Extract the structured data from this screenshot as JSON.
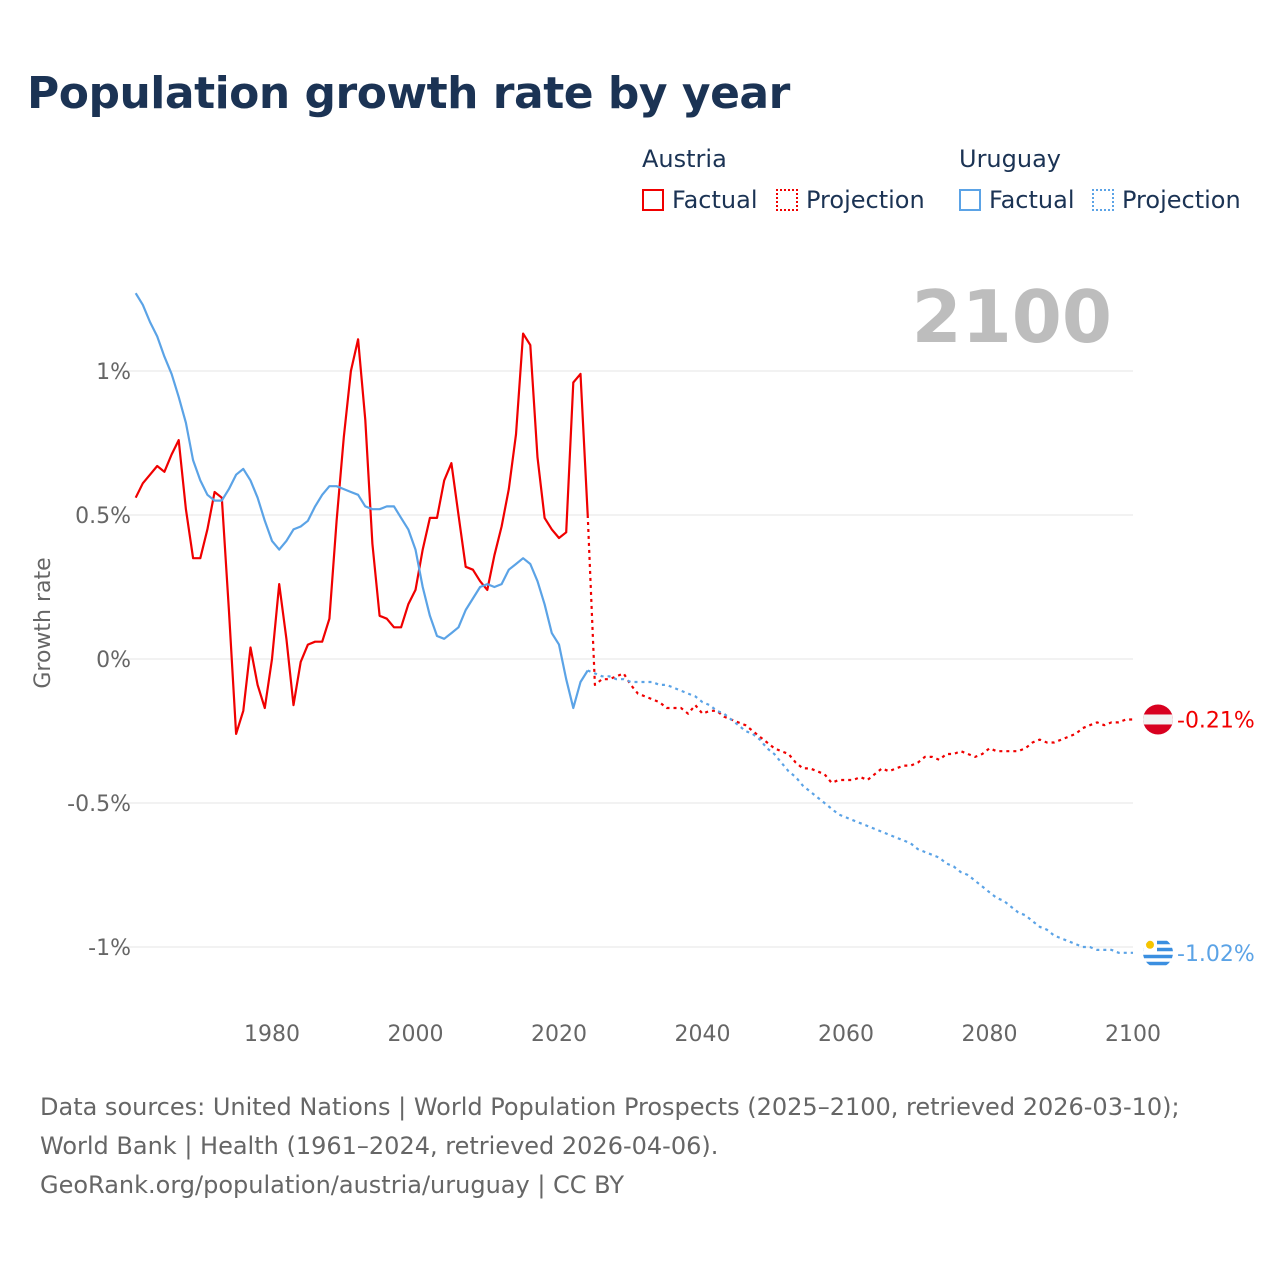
{
  "title": "Population growth rate by year",
  "legend": {
    "groups": [
      {
        "name": "Austria",
        "factual": "Factual",
        "projection": "Projection",
        "color": "#f00000"
      },
      {
        "name": "Uruguay",
        "factual": "Factual",
        "projection": "Projection",
        "color": "#5ba3e6"
      }
    ]
  },
  "year_label": "2100",
  "footer": {
    "sources": "Data sources: United Nations | World Population Prospects (2025–2100, retrieved 2026-03-10); World Bank | Health (1961–2024, retrieved 2026-04-06).",
    "credit": "GeoRank.org/population/austria/uruguay | CC BY"
  },
  "chart_data": {
    "type": "line",
    "title": "Population growth rate by year",
    "ylabel": "Growth rate",
    "xlabel": "",
    "xlim": [
      1961,
      2100
    ],
    "ylim": [
      -1.1,
      1.3
    ],
    "x_ticks": [
      1980,
      2000,
      2020,
      2040,
      2060,
      2080,
      2100
    ],
    "x_tick_labels": [
      "1980",
      "2000",
      "2020",
      "2040",
      "2060",
      "2080",
      "2100"
    ],
    "y_ticks": [
      1,
      0.5,
      0,
      -0.5,
      -1
    ],
    "y_tick_labels": [
      "1%",
      "0.5%",
      "0%",
      "-0.5%",
      "-1%"
    ],
    "grid": true,
    "legend_placement": "top-right",
    "series": [
      {
        "name": "Austria Factual",
        "color": "#f00000",
        "dash": false,
        "start": 1961,
        "values": [
          0.56,
          0.61,
          0.64,
          0.67,
          0.65,
          0.71,
          0.76,
          0.52,
          0.35,
          0.35,
          0.45,
          0.58,
          0.56,
          0.17,
          -0.26,
          -0.18,
          0.04,
          -0.09,
          -0.17,
          0.0,
          0.26,
          0.07,
          -0.16,
          -0.01,
          0.05,
          0.06,
          0.06,
          0.14,
          0.48,
          0.77,
          1.0,
          1.11,
          0.83,
          0.4,
          0.15,
          0.14,
          0.11,
          0.11,
          0.19,
          0.24,
          0.38,
          0.49,
          0.49,
          0.62,
          0.68,
          0.5,
          0.32,
          0.31,
          0.27,
          0.24,
          0.36,
          0.46,
          0.59,
          0.78,
          1.13,
          1.09,
          0.7,
          0.49,
          0.45,
          0.42,
          0.44,
          0.96,
          0.99,
          0.5
        ]
      },
      {
        "name": "Austria Projection",
        "color": "#f00000",
        "dash": true,
        "start": 2024,
        "values": [
          0.5,
          -0.09,
          -0.07,
          -0.07,
          -0.06,
          -0.05,
          -0.09,
          -0.12,
          -0.13,
          -0.14,
          -0.15,
          -0.17,
          -0.17,
          -0.17,
          -0.19,
          -0.16,
          -0.19,
          -0.18,
          -0.18,
          -0.2,
          -0.21,
          -0.22,
          -0.23,
          -0.25,
          -0.27,
          -0.29,
          -0.31,
          -0.32,
          -0.33,
          -0.36,
          -0.38,
          -0.38,
          -0.39,
          -0.4,
          -0.43,
          -0.42,
          -0.42,
          -0.42,
          -0.41,
          -0.42,
          -0.4,
          -0.38,
          -0.39,
          -0.38,
          -0.37,
          -0.37,
          -0.36,
          -0.34,
          -0.34,
          -0.35,
          -0.33,
          -0.33,
          -0.32,
          -0.33,
          -0.34,
          -0.33,
          -0.31,
          -0.32,
          -0.32,
          -0.32,
          -0.32,
          -0.31,
          -0.29,
          -0.28,
          -0.29,
          -0.29,
          -0.28,
          -0.27,
          -0.26,
          -0.24,
          -0.23,
          -0.22,
          -0.23,
          -0.22,
          -0.22,
          -0.21,
          -0.21
        ]
      },
      {
        "name": "Uruguay Factual",
        "color": "#5ba3e6",
        "dash": false,
        "start": 1961,
        "values": [
          1.27,
          1.23,
          1.17,
          1.12,
          1.05,
          0.99,
          0.91,
          0.82,
          0.69,
          0.62,
          0.57,
          0.55,
          0.55,
          0.59,
          0.64,
          0.66,
          0.62,
          0.56,
          0.48,
          0.41,
          0.38,
          0.41,
          0.45,
          0.46,
          0.48,
          0.53,
          0.57,
          0.6,
          0.6,
          0.59,
          0.58,
          0.57,
          0.53,
          0.52,
          0.52,
          0.53,
          0.53,
          0.49,
          0.45,
          0.38,
          0.25,
          0.15,
          0.08,
          0.07,
          0.09,
          0.11,
          0.17,
          0.21,
          0.25,
          0.26,
          0.25,
          0.26,
          0.31,
          0.33,
          0.35,
          0.33,
          0.27,
          0.19,
          0.09,
          0.05,
          -0.07,
          -0.17,
          -0.08,
          -0.04
        ]
      },
      {
        "name": "Uruguay Projection",
        "color": "#5ba3e6",
        "dash": true,
        "start": 2024,
        "values": [
          -0.04,
          -0.05,
          -0.06,
          -0.06,
          -0.07,
          -0.07,
          -0.08,
          -0.08,
          -0.08,
          -0.08,
          -0.09,
          -0.09,
          -0.1,
          -0.11,
          -0.12,
          -0.13,
          -0.15,
          -0.16,
          -0.18,
          -0.19,
          -0.21,
          -0.23,
          -0.25,
          -0.26,
          -0.28,
          -0.31,
          -0.33,
          -0.36,
          -0.39,
          -0.41,
          -0.44,
          -0.46,
          -0.48,
          -0.5,
          -0.52,
          -0.54,
          -0.55,
          -0.56,
          -0.57,
          -0.58,
          -0.59,
          -0.6,
          -0.61,
          -0.62,
          -0.63,
          -0.64,
          -0.66,
          -0.67,
          -0.68,
          -0.69,
          -0.71,
          -0.72,
          -0.74,
          -0.75,
          -0.77,
          -0.79,
          -0.81,
          -0.83,
          -0.84,
          -0.86,
          -0.88,
          -0.89,
          -0.91,
          -0.93,
          -0.94,
          -0.96,
          -0.97,
          -0.98,
          -0.99,
          -1.0,
          -1.0,
          -1.01,
          -1.01,
          -1.01,
          -1.02,
          -1.02,
          -1.02
        ]
      }
    ],
    "end_labels": [
      {
        "country": "Austria",
        "text": "-0.21%",
        "value": -0.21,
        "color": "#f00000"
      },
      {
        "country": "Uruguay",
        "text": "-1.02%",
        "value": -1.02,
        "color": "#5ba3e6"
      }
    ]
  }
}
